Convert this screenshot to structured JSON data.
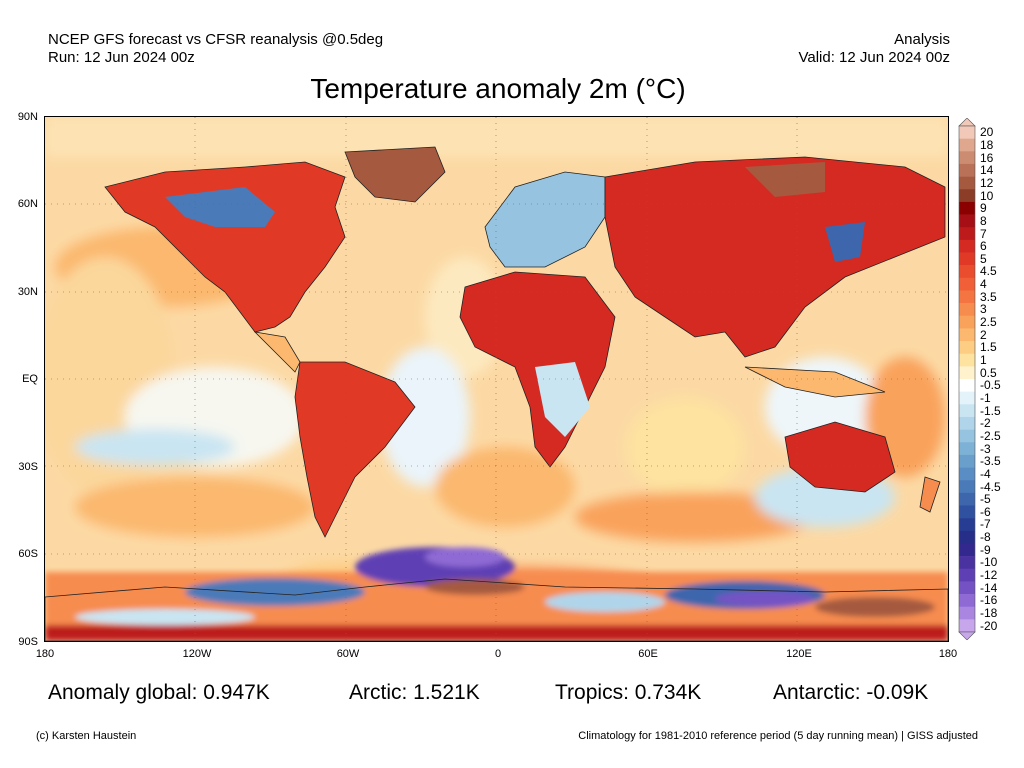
{
  "header": {
    "source": "NCEP GFS forecast vs CFSR reanalysis @0.5deg",
    "run": "Run: 12 Jun 2024 00z",
    "mode": "Analysis",
    "valid": "Valid: 12 Jun 2024 00z"
  },
  "title": "Temperature anomaly 2m (°C)",
  "axes": {
    "latitudes": [
      "90N",
      "60N",
      "30N",
      "EQ",
      "30S",
      "60S",
      "90S"
    ],
    "longitudes": [
      "180",
      "120W",
      "60W",
      "0",
      "60E",
      "120E",
      "180"
    ]
  },
  "colorbar": {
    "labels": [
      "20",
      "18",
      "16",
      "14",
      "12",
      "10",
      "9",
      "8",
      "7",
      "6",
      "5",
      "4.5",
      "4",
      "3.5",
      "3",
      "2.5",
      "2",
      "1.5",
      "1",
      "0.5",
      "-0.5",
      "-1",
      "-1.5",
      "-2",
      "-2.5",
      "-3",
      "-3.5",
      "-4",
      "-4.5",
      "-5",
      "-6",
      "-7",
      "-8",
      "-9",
      "-10",
      "-12",
      "-14",
      "-16",
      "-18",
      "-20"
    ],
    "colors": [
      "#f2c9b8",
      "#dfa78e",
      "#cc8c72",
      "#b97258",
      "#a55a40",
      "#8c3d28",
      "#8b0000",
      "#a50f15",
      "#bd1b1b",
      "#d42a22",
      "#e03a26",
      "#ea4c2e",
      "#f05f37",
      "#f47542",
      "#f78c4f",
      "#f9a25c",
      "#fbb86e",
      "#fdcd84",
      "#fee2a0",
      "#fff2cc",
      "#ffffff",
      "#e4f2f9",
      "#c9e5f2",
      "#b0d5ea",
      "#96c4e0",
      "#7db1d5",
      "#6a9fcc",
      "#5a8dc3",
      "#4b7ab9",
      "#3d66ad",
      "#3050a0",
      "#273d94",
      "#262e8a",
      "#33288e",
      "#4a32a1",
      "#5e3fb4",
      "#7552c4",
      "#8f6ad4",
      "#aa86e0",
      "#c7a6ec"
    ]
  },
  "stats": {
    "global": "Anomaly global: 0.947K",
    "arctic": "Arctic: 1.521K",
    "tropics": "Tropics: 0.734K",
    "antarctic": "Antarctic: -0.09K"
  },
  "footer": {
    "credit": "(c) Karsten Haustein",
    "note": "Climatology for 1981-2010 reference period (5 day running mean) | GISS adjusted"
  }
}
